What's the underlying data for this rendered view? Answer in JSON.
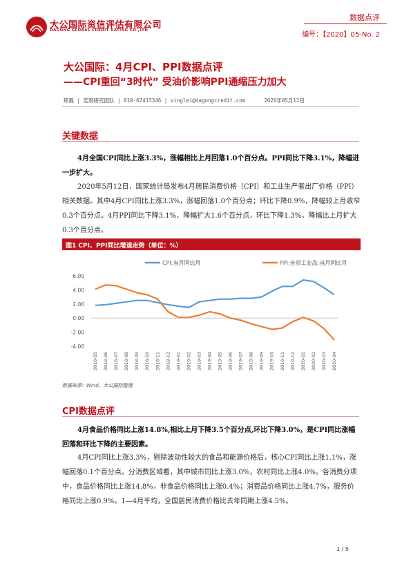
{
  "header": {
    "org_name_cn": "大公国际资信评估有限公司",
    "org_name_en": "DAGONG GLOBAL CREDIT RATING CO.,LTD",
    "report_type": "数据点评",
    "doc_number": "编号：【2020】05-No. 2",
    "colors": {
      "brand": "#c0141c"
    }
  },
  "title": {
    "line1": "大公国际：4月CPI、PPI数据点评",
    "line2": "——CPI重回“3时代”  受油价影响PPI通缩压力加大"
  },
  "byline": "邢磊 | 宏观研究团队 | 010-67413346 | xinglei@dagongcredit.com      2020年05月12日",
  "sections": {
    "key_data": {
      "heading": "关键数据",
      "summary": "4月全国CPI同比上涨3.3%，涨幅相比上月回落1.0个百分点。PPI同比下降3.1%，降幅进一步扩大。",
      "body": "2020年5月12日，国家统计局发布4月居民消费价格（CPI）和工业生产者出厂价格（PPI）相关数据。其中4月CPI同比上涨3.3%，涨幅回落1.0个百分点；环比下降0.9%，降幅较上月收窄0.3个百分点。4月PPI同比下降3.1%，降幅扩大1.6个百分点，环比下降1.3%，降幅比上月扩大0.3个百分点。"
    },
    "figure": {
      "title": "图1 CPI、PPI同比增速走势（单位：%）",
      "source": "数据来源：Wind，大公国际整理"
    },
    "cpi_review": {
      "heading": "CPI数据点评",
      "summary": "4月食品价格同比上涨14.8%,相比上月下降3.5个百分点,环比下降3.0%，是CPI同比涨幅回落和环比下降的主要因素。",
      "body": "4月CPI同比上涨3.3%，剔除波动性较大的食品和能源价格后，核心CPI同比上涨1.1%，涨幅回落0.1个百分点。分消费区域看，其中城市同比上涨3.0%，农村同比上涨4.0%。各消费分项中，食品价格同比上涨14.8%，非食品价格同比上涨0.4%；消费品价格同比上涨4.7%，服务价格同比上涨0.9%。1—4月平均，全国居民消费价格比去年同期上涨4.5%。"
    }
  },
  "page_number": "1 / 5",
  "chart_data": {
    "type": "line",
    "title": "",
    "xlabel": "",
    "ylabel": "",
    "ylim": [
      -4,
      6
    ],
    "yticks": [
      "6.00",
      "4.00",
      "2.00",
      "0.00",
      "-2.00",
      "-4.00"
    ],
    "legend_position": "top",
    "grid": false,
    "categories": [
      "2018-05",
      "2018-06",
      "2018-07",
      "2018-08",
      "2018-09",
      "2018-10",
      "2018-11",
      "2018-12",
      "2019-01",
      "2019-02",
      "2019-03",
      "2019-04",
      "2019-05",
      "2019-06",
      "2019-07",
      "2019-08",
      "2019-09",
      "2019-10",
      "2019-11",
      "2019-12",
      "2020-01",
      "2020-02",
      "2020-03",
      "2020-04"
    ],
    "series": [
      {
        "name": "CPI:当月同比月",
        "color": "#5b9bd5",
        "values": [
          1.8,
          1.9,
          2.1,
          2.3,
          2.5,
          2.5,
          2.2,
          1.9,
          1.7,
          1.5,
          2.3,
          2.5,
          2.7,
          2.7,
          2.8,
          2.8,
          3.0,
          3.8,
          4.5,
          4.5,
          5.4,
          5.2,
          4.3,
          3.3
        ]
      },
      {
        "name": "PPI:全部工业品:当月同比月",
        "color": "#ed7d31",
        "values": [
          4.1,
          4.7,
          4.6,
          4.1,
          3.6,
          3.3,
          2.7,
          0.9,
          0.1,
          0.1,
          0.4,
          0.9,
          0.6,
          0.0,
          -0.3,
          -0.8,
          -1.2,
          -1.6,
          -1.4,
          -0.5,
          0.1,
          -0.4,
          -1.5,
          -3.1
        ]
      }
    ]
  }
}
